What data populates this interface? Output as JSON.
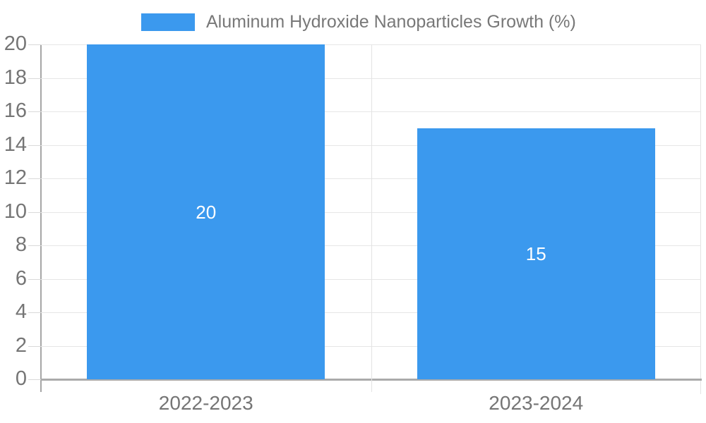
{
  "chart_data": {
    "type": "bar",
    "title": "",
    "xlabel": "",
    "ylabel": "",
    "categories": [
      "2022-2023",
      "2023-2024"
    ],
    "series": [
      {
        "name": "Aluminum Hydroxide Nanoparticles Growth (%)",
        "values": [
          20,
          15
        ],
        "color": "#3b99ee"
      }
    ],
    "value_labels": [
      "20",
      "15"
    ],
    "value_label_color": "#ffffff",
    "ylim": [
      0,
      20
    ],
    "ytick_step": 2,
    "grid": true,
    "legend_position": "top-center"
  },
  "legend": {
    "label": "Aluminum Hydroxide Nanoparticles Growth (%)",
    "swatch_color": "#3b99ee"
  },
  "colors": {
    "bar": "#3b99ee",
    "axis_text": "#757575",
    "gridline": "#e6e6e6",
    "axis_line": "#ababab",
    "tick": "#d9d9d9",
    "background": "#ffffff"
  }
}
